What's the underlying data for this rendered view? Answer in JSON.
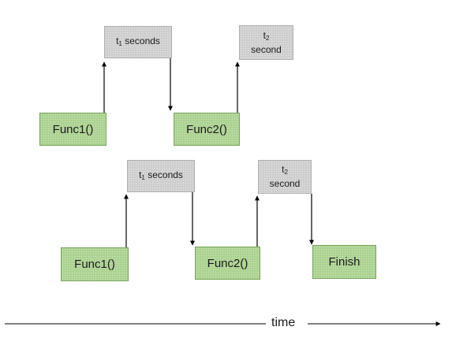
{
  "row1": {
    "func1": "Func1()",
    "wait1": {
      "letter": "t",
      "subscript": "1",
      "unit": "seconds"
    },
    "func2": "Func2()",
    "wait2": {
      "letter": "t",
      "subscript": "2",
      "unit": "second"
    }
  },
  "row2": {
    "func1": "Func1()",
    "wait1": {
      "letter": "t",
      "subscript": "1",
      "unit": "seconds"
    },
    "func2": "Func2()",
    "wait2": {
      "letter": "t",
      "subscript": "2",
      "unit": "second"
    },
    "finish": "Finish"
  },
  "axis": {
    "label": "time"
  },
  "colors": {
    "function_box": "#a9d18e",
    "wait_box": "#cccccc",
    "arrow": "#000000"
  }
}
